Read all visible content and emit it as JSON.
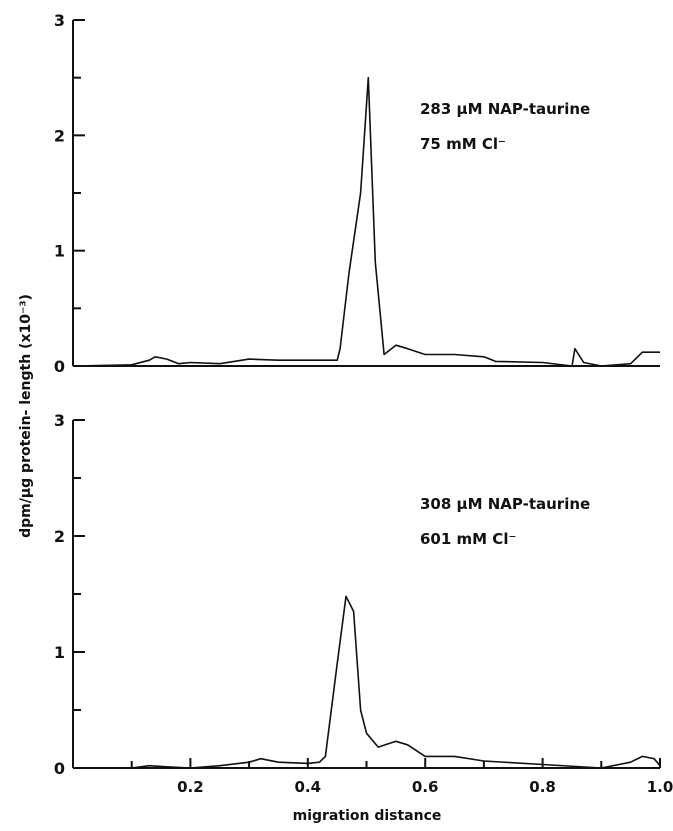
{
  "chart_data": {
    "type": "line",
    "ylabel": "dpm/µg protein- length  (x10⁻³)",
    "xlabel": "migration distance",
    "xlim": [
      0,
      1.0
    ],
    "x_ticks": [
      "0.2",
      "0.4",
      "0.6",
      "0.8",
      "1.0"
    ],
    "grid": false,
    "panels": [
      {
        "ylim": [
          0,
          3
        ],
        "y_ticks": [
          "0",
          "1",
          "2",
          "3"
        ],
        "annotation": [
          "283 µM NAP-taurine",
          "75 mM Cl⁻"
        ],
        "series": [
          {
            "x": [
              0.0,
              0.1,
              0.13,
              0.14,
              0.16,
              0.18,
              0.2,
              0.25,
              0.3,
              0.35,
              0.4,
              0.45,
              0.455,
              0.47,
              0.49,
              0.503,
              0.515,
              0.53,
              0.55,
              0.57,
              0.6,
              0.65,
              0.7,
              0.72,
              0.8,
              0.85,
              0.855,
              0.87,
              0.9,
              0.95,
              0.97,
              1.0
            ],
            "y": [
              0.0,
              0.01,
              0.05,
              0.08,
              0.06,
              0.02,
              0.03,
              0.02,
              0.06,
              0.05,
              0.05,
              0.05,
              0.15,
              0.8,
              1.5,
              2.5,
              0.9,
              0.1,
              0.18,
              0.15,
              0.1,
              0.1,
              0.08,
              0.04,
              0.03,
              0.0,
              0.15,
              0.03,
              0.0,
              0.02,
              0.12,
              0.12
            ]
          }
        ]
      },
      {
        "ylim": [
          0,
          3
        ],
        "y_ticks": [
          "0",
          "1",
          "2",
          "3"
        ],
        "annotation": [
          "308 µM NAP-taurine",
          "601 mM Cl⁻"
        ],
        "series": [
          {
            "x": [
              0.0,
              0.1,
              0.13,
              0.16,
              0.2,
              0.25,
              0.3,
              0.32,
              0.35,
              0.4,
              0.42,
              0.43,
              0.45,
              0.465,
              0.478,
              0.49,
              0.5,
              0.52,
              0.55,
              0.57,
              0.6,
              0.65,
              0.7,
              0.8,
              0.9,
              0.95,
              0.97,
              0.99,
              1.0
            ],
            "y": [
              0.0,
              0.0,
              0.02,
              0.01,
              0.0,
              0.02,
              0.05,
              0.08,
              0.05,
              0.04,
              0.05,
              0.1,
              0.9,
              1.48,
              1.35,
              0.5,
              0.3,
              0.18,
              0.23,
              0.2,
              0.1,
              0.1,
              0.06,
              0.03,
              0.0,
              0.05,
              0.1,
              0.08,
              0.02
            ]
          }
        ]
      }
    ]
  }
}
